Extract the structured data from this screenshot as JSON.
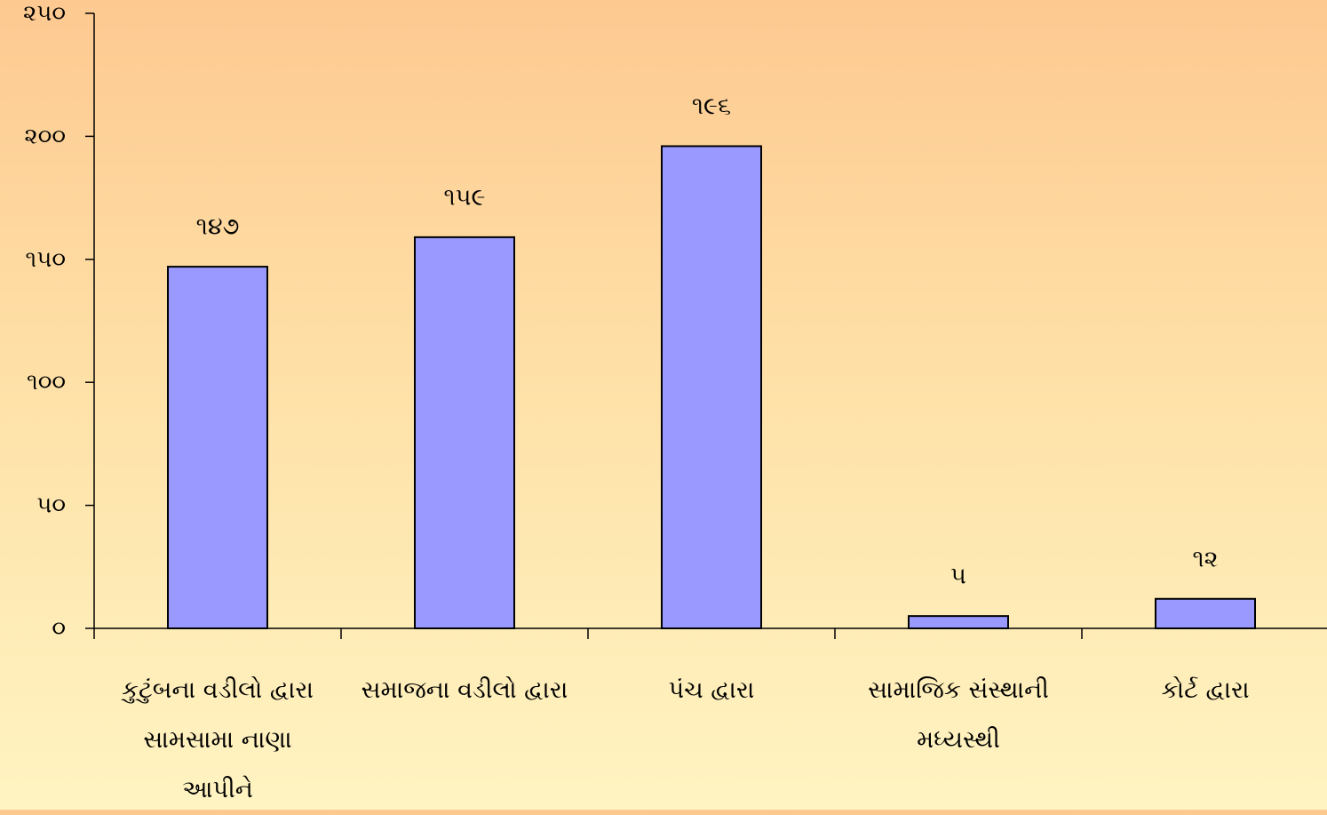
{
  "chart_data": {
    "type": "bar",
    "categories": [
      "કુટુંબના વડીલો દ્વારા સામસામા નાણા આપીને",
      "સમાજના વડીલો દ્વારા",
      "પંચ દ્વારા",
      "સામાજિક સંસ્થાની મધ્યસ્થી",
      "કોર્ટ દ્વારા"
    ],
    "values": [
      147,
      159,
      196,
      5,
      12
    ],
    "value_labels": [
      "૧૪૭",
      "૧૫૯",
      "૧૯૬",
      "૫",
      "૧૨"
    ],
    "ylim": [
      0,
      250
    ],
    "y_ticks": [
      0,
      50,
      100,
      150,
      200,
      250
    ],
    "y_tick_labels": [
      "૦",
      "૫૦",
      "૧૦૦",
      "૧૫૦",
      "૨૦૦",
      "૨૫૦"
    ],
    "title": "",
    "xlabel": "",
    "ylabel": "",
    "grid": false,
    "colors": {
      "bar_fill": "#9999ff",
      "bar_stroke": "#000000",
      "axis": "#000000",
      "text": "#000000"
    }
  }
}
